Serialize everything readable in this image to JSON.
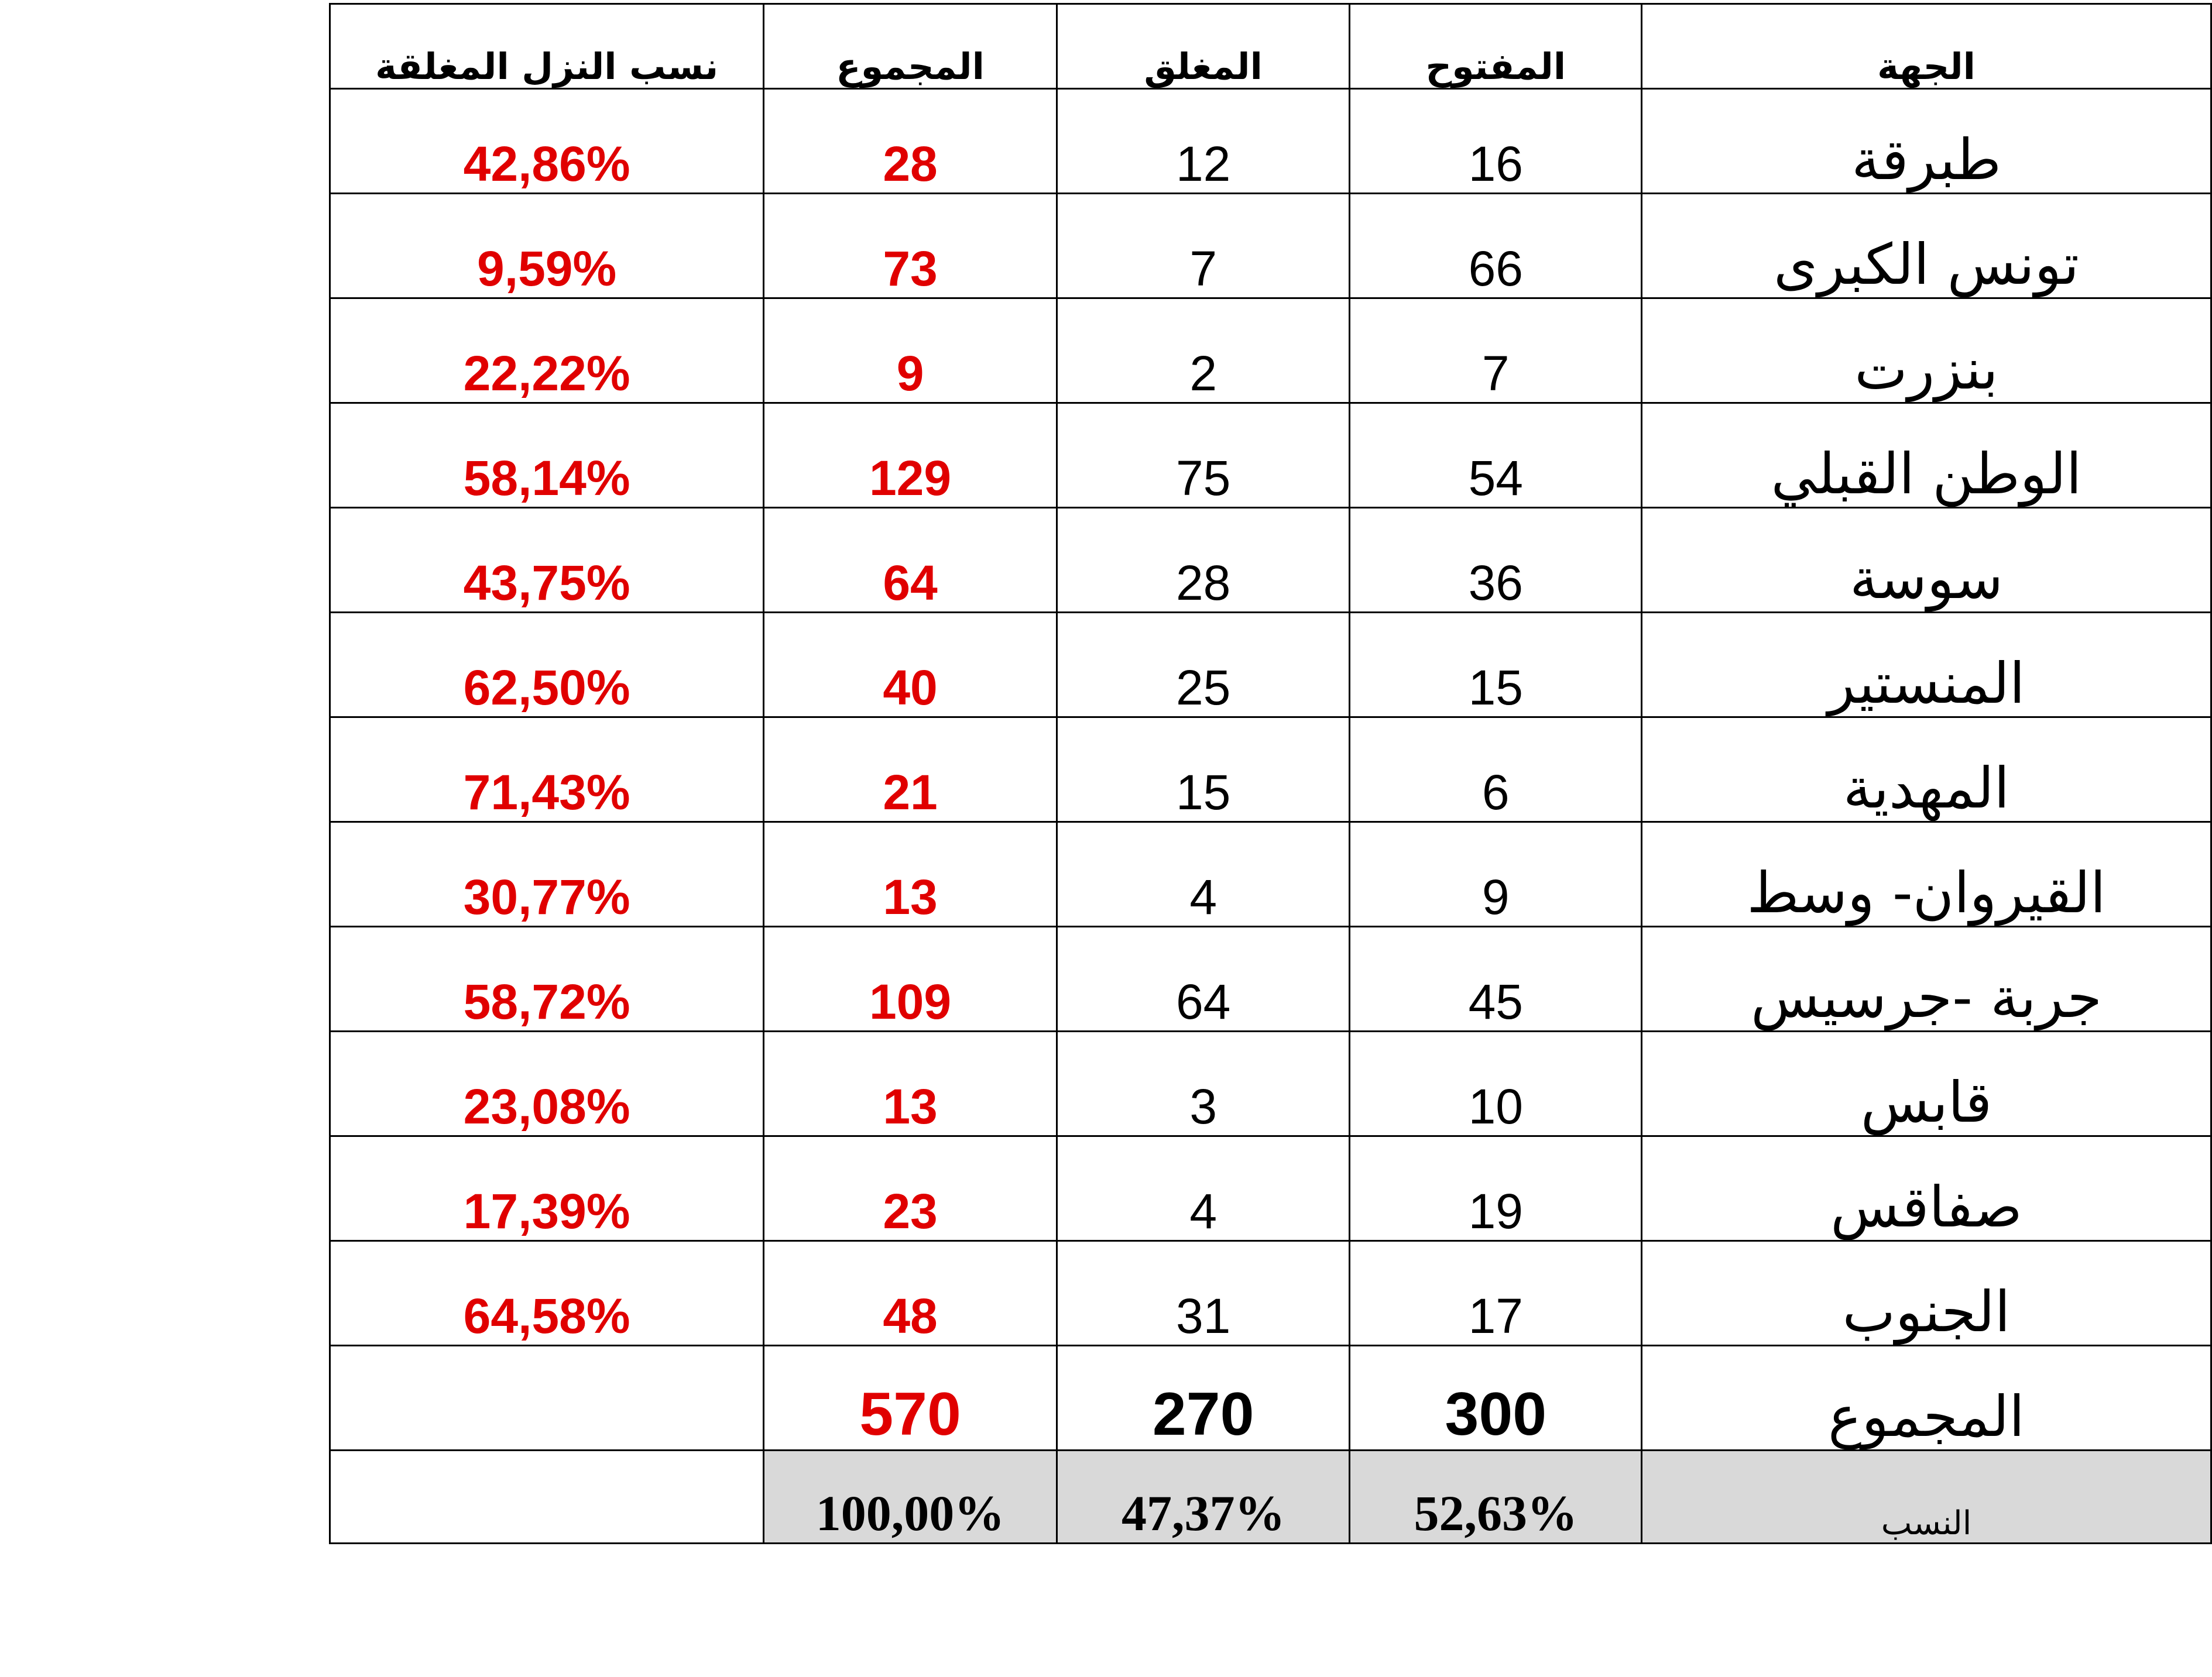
{
  "headers": {
    "region": "الجهة",
    "open": "المفتوح",
    "closed": "المغلق",
    "total": "المجموع",
    "closed_pct": "نسب النزل المغلقة"
  },
  "rows": [
    {
      "region": "طبرقة",
      "open": "16",
      "closed": "12",
      "total": "28",
      "closed_pct": "42,86%"
    },
    {
      "region": "تونس الكبرى",
      "open": "66",
      "closed": "7",
      "total": "73",
      "closed_pct": "9,59%"
    },
    {
      "region": "بنزرت",
      "open": "7",
      "closed": "2",
      "total": "9",
      "closed_pct": "22,22%"
    },
    {
      "region": "الوطن القبلي",
      "open": "54",
      "closed": "75",
      "total": "129",
      "closed_pct": "58,14%"
    },
    {
      "region": "سوسة",
      "open": "36",
      "closed": "28",
      "total": "64",
      "closed_pct": "43,75%"
    },
    {
      "region": "المنستير",
      "open": "15",
      "closed": "25",
      "total": "40",
      "closed_pct": "62,50%"
    },
    {
      "region": "المهدية",
      "open": "6",
      "closed": "15",
      "total": "21",
      "closed_pct": "71,43%"
    },
    {
      "region": "القيروان- وسط",
      "open": "9",
      "closed": "4",
      "total": "13",
      "closed_pct": "30,77%"
    },
    {
      "region": "جربة -جرسيس",
      "open": "45",
      "closed": "64",
      "total": "109",
      "closed_pct": "58,72%"
    },
    {
      "region": "قابس",
      "open": "10",
      "closed": "3",
      "total": "13",
      "closed_pct": "23,08%"
    },
    {
      "region": "صفاقس",
      "open": "19",
      "closed": "4",
      "total": "23",
      "closed_pct": "17,39%"
    },
    {
      "region": "الجنوب",
      "open": "17",
      "closed": "31",
      "total": "48",
      "closed_pct": "64,58%"
    }
  ],
  "totals": {
    "label": "المجموع",
    "open": "300",
    "closed": "270",
    "total": "570"
  },
  "ratios": {
    "label": "النسب",
    "open": "52,63%",
    "closed": "47,37%",
    "total": "100,00%"
  },
  "colors": {
    "highlight": "#e00000",
    "ratio_bg": "#d9d9d9"
  }
}
